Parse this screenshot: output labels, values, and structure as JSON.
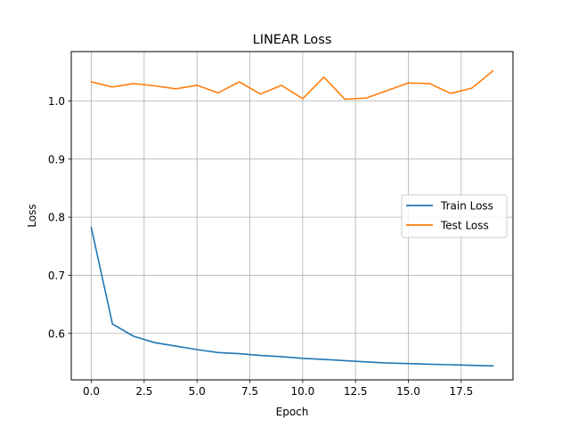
{
  "chart_data": {
    "type": "line",
    "title": "LINEAR Loss",
    "xlabel": "Epoch",
    "ylabel": "Loss",
    "xlim": [
      -0.95,
      19.95
    ],
    "ylim": [
      0.52,
      1.085
    ],
    "x": [
      0,
      1,
      2,
      3,
      4,
      5,
      6,
      7,
      8,
      9,
      10,
      11,
      12,
      13,
      14,
      15,
      16,
      17,
      18,
      19
    ],
    "xticks": [
      0,
      2.5,
      5,
      7.5,
      10,
      12.5,
      15,
      17.5
    ],
    "xtick_labels": [
      "0.0",
      "2.5",
      "5.0",
      "7.5",
      "10.0",
      "12.5",
      "15.0",
      "17.5"
    ],
    "yticks": [
      0.6,
      0.7,
      0.8,
      0.9,
      1.0
    ],
    "ytick_labels": [
      "0.6",
      "0.7",
      "0.8",
      "0.9",
      "1.0"
    ],
    "grid": true,
    "legend_position": "center-right",
    "series": [
      {
        "name": "Train Loss",
        "color": "#1f77b4",
        "values": [
          0.782,
          0.616,
          0.595,
          0.584,
          0.578,
          0.572,
          0.567,
          0.565,
          0.562,
          0.56,
          0.557,
          0.555,
          0.553,
          0.551,
          0.549,
          0.548,
          0.547,
          0.546,
          0.545,
          0.544
        ]
      },
      {
        "name": "Test Loss",
        "color": "#ff7f0e",
        "values": [
          1.033,
          1.024,
          1.03,
          1.026,
          1.021,
          1.027,
          1.014,
          1.033,
          1.012,
          1.027,
          1.004,
          1.041,
          1.003,
          1.005,
          1.018,
          1.031,
          1.03,
          1.013,
          1.022,
          1.052
        ]
      }
    ]
  }
}
